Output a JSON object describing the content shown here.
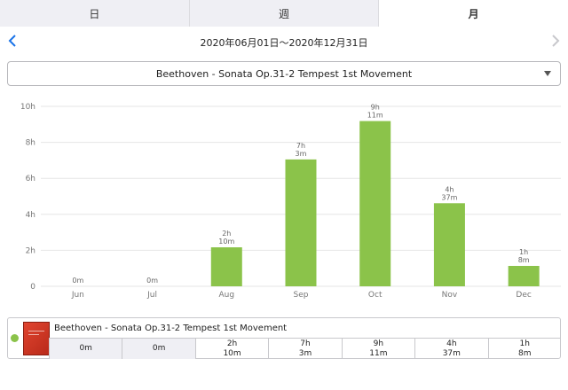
{
  "tabs": [
    {
      "label": "日",
      "active": false
    },
    {
      "label": "週",
      "active": false
    },
    {
      "label": "月",
      "active": true
    }
  ],
  "navigator": {
    "date_range": "2020年06月01日〜2020年12月31日",
    "prev_icon": "chevron-left-icon",
    "next_icon": "chevron-right-icon"
  },
  "piece_select": {
    "value": "Beethoven - Sonata Op.31-2 Tempest 1st Movement"
  },
  "colors": {
    "bar": "#8bc34a",
    "accent": "#1a73e8",
    "grid": "#e6e6e6"
  },
  "chart_data": {
    "type": "bar",
    "categories": [
      "Jun",
      "Jul",
      "Aug",
      "Sep",
      "Oct",
      "Nov",
      "Dec"
    ],
    "values_minutes": [
      0,
      0,
      130,
      423,
      551,
      277,
      68
    ],
    "bar_labels": [
      [
        "0m"
      ],
      [
        "0m"
      ],
      [
        "2h",
        "10m"
      ],
      [
        "7h",
        "3m"
      ],
      [
        "9h",
        "11m"
      ],
      [
        "4h",
        "37m"
      ],
      [
        "1h",
        "8m"
      ]
    ],
    "y_ticks": [
      "0",
      "2h",
      "4h",
      "6h",
      "8h",
      "10h"
    ],
    "ylim_hours": [
      0,
      10
    ],
    "grid": true
  },
  "summary": {
    "title": "Beethoven - Sonata Op.31-2 Tempest 1st Movement",
    "cells": [
      {
        "line1": "0m",
        "line2": ""
      },
      {
        "line1": "0m",
        "line2": ""
      },
      {
        "line1": "2h",
        "line2": "10m"
      },
      {
        "line1": "7h",
        "line2": "3m"
      },
      {
        "line1": "9h",
        "line2": "11m"
      },
      {
        "line1": "4h",
        "line2": "37m"
      },
      {
        "line1": "1h",
        "line2": "8m"
      }
    ]
  }
}
